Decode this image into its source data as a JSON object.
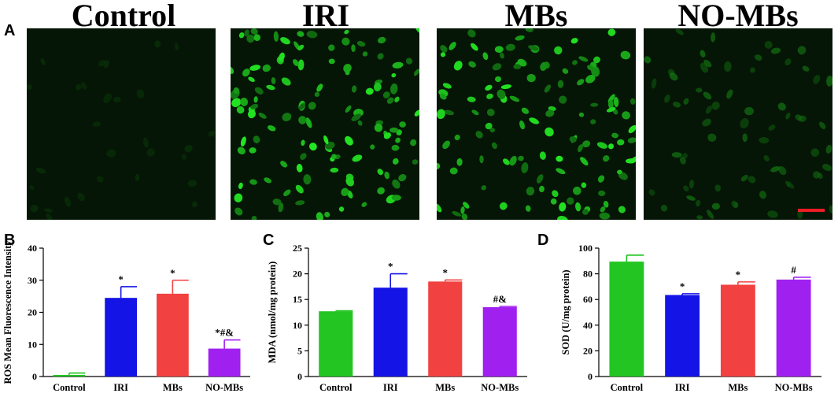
{
  "headers": [
    "Control",
    "IRI",
    "MBs",
    "NO-MBs"
  ],
  "panel_labels": {
    "a": "A",
    "b": "B",
    "c": "C",
    "d": "D"
  },
  "micrographs": [
    {
      "name": "Control",
      "brightness": 0.08
    },
    {
      "name": "IRI",
      "brightness": 1.0
    },
    {
      "name": "MBs",
      "brightness": 1.0
    },
    {
      "name": "NO-MBs",
      "brightness": 0.45
    }
  ],
  "scale_bar_color": "#ee1c24",
  "colors": {
    "Control": "#22c522",
    "IRI": "#1414e6",
    "MBs": "#f24141",
    "NO-MBs": "#a020f0"
  },
  "chart_data": [
    {
      "type": "bar",
      "categories": [
        "Control",
        "IRI",
        "MBs",
        "NO-MBs"
      ],
      "values": [
        0.5,
        24.5,
        25.8,
        8.7
      ],
      "errors": [
        0.6,
        3.5,
        4.2,
        2.7
      ],
      "annotations": [
        "",
        "*",
        "*",
        "*#&"
      ],
      "ylabel": "ROS Mean Fluorescence Intensity",
      "ylim": [
        0,
        40
      ],
      "yticks": [
        0,
        10,
        20,
        30,
        40
      ]
    },
    {
      "type": "bar",
      "categories": [
        "Control",
        "IRI",
        "MBs",
        "NO-MBs"
      ],
      "values": [
        12.7,
        17.3,
        18.5,
        13.5
      ],
      "errors": [
        0.1,
        2.7,
        0.3,
        0.15
      ],
      "annotations": [
        "",
        "*",
        "*",
        "#&"
      ],
      "ylabel": "MDA (nmol/mg protein)",
      "ylim": [
        0,
        25
      ],
      "yticks": [
        0,
        5,
        10,
        15,
        20,
        25
      ]
    },
    {
      "type": "bar",
      "categories": [
        "Control",
        "IRI",
        "MBs",
        "NO-MBs"
      ],
      "values": [
        89.5,
        63.5,
        71.5,
        75.5
      ],
      "errors": [
        5.0,
        1.0,
        2.2,
        1.8
      ],
      "annotations": [
        "",
        "*",
        "*",
        "#"
      ],
      "ylabel": "SOD (U/mg protein)",
      "ylim": [
        0,
        100
      ],
      "yticks": [
        0,
        20,
        40,
        60,
        80,
        100
      ]
    }
  ]
}
